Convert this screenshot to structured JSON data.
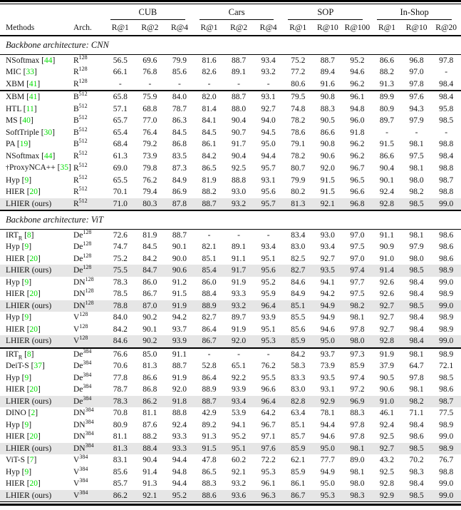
{
  "colors": {
    "citation_green": "#00df00",
    "highlight_row_gray": "#e6e6e6",
    "rule_black": "#000000"
  },
  "table": {
    "methods_header": "Methods",
    "arch_header": "Arch.",
    "col_groups": [
      {
        "label": "CUB",
        "cols": [
          "R@1",
          "R@2",
          "R@4"
        ]
      },
      {
        "label": "Cars",
        "cols": [
          "R@1",
          "R@2",
          "R@4"
        ]
      },
      {
        "label": "SOP",
        "cols": [
          "R@1",
          "R@10",
          "R@100"
        ]
      },
      {
        "label": "In-Shop",
        "cols": [
          "R@1",
          "R@10",
          "R@20"
        ]
      }
    ],
    "sections": [
      {
        "title": "Backbone architecture: CNN",
        "blocks": [
          {
            "rows": [
              {
                "method": "NSoftmax",
                "cite": "44",
                "arch": "R",
                "sup": "128",
                "vals": [
                  "56.5",
                  "69.6",
                  "79.9",
                  "81.6",
                  "88.7",
                  "93.4",
                  "75.2",
                  "88.7",
                  "95.2",
                  "86.6",
                  "96.8",
                  "97.8"
                ]
              },
              {
                "method": "MIC",
                "cite": "33",
                "arch": "R",
                "sup": "128",
                "vals": [
                  "66.1",
                  "76.8",
                  "85.6",
                  "82.6",
                  "89.1",
                  "93.2",
                  "77.2",
                  "89.4",
                  "94.6",
                  "88.2",
                  "97.0",
                  "-"
                ]
              },
              {
                "method": "XBM",
                "cite": "41",
                "arch": "R",
                "sup": "128",
                "vals": [
                  "-",
                  "-",
                  "-",
                  "-",
                  "-",
                  "-",
                  "80.6",
                  "91.6",
                  "96.2",
                  "91.3",
                  "97.8",
                  "98.4"
                ]
              }
            ]
          },
          {
            "rows": [
              {
                "method": "XBM",
                "cite": "41",
                "arch": "B",
                "sup": "512",
                "vals": [
                  "65.8",
                  "75.9",
                  "84.0",
                  "82.0",
                  "88.7",
                  "93.1",
                  "79.5",
                  "90.8",
                  "96.1",
                  "89.9",
                  "97.6",
                  "98.4"
                ]
              },
              {
                "method": "HTL",
                "cite": "11",
                "arch": "B",
                "sup": "512",
                "vals": [
                  "57.1",
                  "68.8",
                  "78.7",
                  "81.4",
                  "88.0",
                  "92.7",
                  "74.8",
                  "88.3",
                  "94.8",
                  "80.9",
                  "94.3",
                  "95.8"
                ]
              },
              {
                "method": "MS",
                "cite": "40",
                "arch": "B",
                "sup": "512",
                "vals": [
                  "65.7",
                  "77.0",
                  "86.3",
                  "84.1",
                  "90.4",
                  "94.0",
                  "78.2",
                  "90.5",
                  "96.0",
                  "89.7",
                  "97.9",
                  "98.5"
                ]
              },
              {
                "method": "SoftTriple",
                "cite": "30",
                "arch": "B",
                "sup": "512",
                "vals": [
                  "65.4",
                  "76.4",
                  "84.5",
                  "84.5",
                  "90.7",
                  "94.5",
                  "78.6",
                  "86.6",
                  "91.8",
                  "-",
                  "-",
                  "-"
                ]
              },
              {
                "method": "PA",
                "cite": "19",
                "arch": "B",
                "sup": "512",
                "vals": [
                  "68.4",
                  "79.2",
                  "86.8",
                  "86.1",
                  "91.7",
                  "95.0",
                  "79.1",
                  "90.8",
                  "96.2",
                  "91.5",
                  "98.1",
                  "98.8"
                ]
              },
              {
                "method": "NSoftmax",
                "cite": "44",
                "arch": "R",
                "sup": "512",
                "vals": [
                  "61.3",
                  "73.9",
                  "83.5",
                  "84.2",
                  "90.4",
                  "94.4",
                  "78.2",
                  "90.6",
                  "96.2",
                  "86.6",
                  "97.5",
                  "98.4"
                ]
              },
              {
                "method": "ProxyNCA++",
                "cite": "35",
                "dagger": true,
                "arch": "R",
                "sup": "512",
                "vals": [
                  "69.0",
                  "79.8",
                  "87.3",
                  "86.5",
                  "92.5",
                  "95.7",
                  "80.7",
                  "92.0",
                  "96.7",
                  "90.4",
                  "98.1",
                  "98.8"
                ]
              },
              {
                "method": "Hyp",
                "cite": "9",
                "arch": "R",
                "sup": "512",
                "vals": [
                  "65.5",
                  "76.2",
                  "84.9",
                  "81.9",
                  "88.8",
                  "93.1",
                  "79.9",
                  "91.5",
                  "96.5",
                  "90.1",
                  "98.0",
                  "98.7"
                ]
              },
              {
                "method": "HIER",
                "cite": "20",
                "arch": "R",
                "sup": "512",
                "vals": [
                  "70.1",
                  "79.4",
                  "86.9",
                  "88.2",
                  "93.0",
                  "95.6",
                  "80.2",
                  "91.5",
                  "96.6",
                  "92.4",
                  "98.2",
                  "98.8"
                ]
              },
              {
                "method": "LHIER (ours)",
                "ours": true,
                "arch": "R",
                "sup": "512",
                "vals": [
                  "71.0",
                  "80.3",
                  "87.8",
                  "88.7",
                  "93.2",
                  "95.7",
                  "81.3",
                  "92.1",
                  "96.8",
                  "92.8",
                  "98.5",
                  "99.0"
                ]
              }
            ]
          }
        ]
      },
      {
        "title": "Backbone architecture: ViT",
        "blocks": [
          {
            "rows": [
              {
                "method": "IRT",
                "subscript": "R",
                "cite": "8",
                "arch": "De",
                "sup": "128",
                "vals": [
                  "72.6",
                  "81.9",
                  "88.7",
                  "-",
                  "-",
                  "-",
                  "83.4",
                  "93.0",
                  "97.0",
                  "91.1",
                  "98.1",
                  "98.6"
                ]
              },
              {
                "method": "Hyp",
                "cite": "9",
                "arch": "De",
                "sup": "128",
                "vals": [
                  "74.7",
                  "84.5",
                  "90.1",
                  "82.1",
                  "89.1",
                  "93.4",
                  "83.0",
                  "93.4",
                  "97.5",
                  "90.9",
                  "97.9",
                  "98.6"
                ]
              },
              {
                "method": "HIER",
                "cite": "20",
                "arch": "De",
                "sup": "128",
                "vals": [
                  "75.2",
                  "84.2",
                  "90.0",
                  "85.1",
                  "91.1",
                  "95.1",
                  "82.5",
                  "92.7",
                  "97.0",
                  "91.0",
                  "98.0",
                  "98.6"
                ]
              },
              {
                "method": "LHIER (ours)",
                "ours": true,
                "arch": "De",
                "sup": "128",
                "vals": [
                  "75.5",
                  "84.7",
                  "90.6",
                  "85.4",
                  "91.7",
                  "95.6",
                  "82.7",
                  "93.5",
                  "97.4",
                  "91.4",
                  "98.5",
                  "98.9"
                ]
              },
              {
                "method": "Hyp",
                "cite": "9",
                "arch": "DN",
                "sup": "128",
                "vals": [
                  "78.3",
                  "86.0",
                  "91.2",
                  "86.0",
                  "91.9",
                  "95.2",
                  "84.6",
                  "94.1",
                  "97.7",
                  "92.6",
                  "98.4",
                  "99.0"
                ]
              },
              {
                "method": "HIER",
                "cite": "20",
                "arch": "DN",
                "sup": "128",
                "vals": [
                  "78.5",
                  "86.7",
                  "91.5",
                  "88.4",
                  "93.3",
                  "95.9",
                  "84.9",
                  "94.2",
                  "97.5",
                  "92.6",
                  "98.4",
                  "98.9"
                ]
              },
              {
                "method": "LHIER (ours)",
                "ours": true,
                "arch": "DN",
                "sup": "128",
                "vals": [
                  "78.8",
                  "87.0",
                  "91.9",
                  "88.9",
                  "93.2",
                  "96.4",
                  "85.1",
                  "94.9",
                  "98.2",
                  "92.7",
                  "98.5",
                  "99.0"
                ]
              },
              {
                "method": "Hyp",
                "cite": "9",
                "arch": "V",
                "sup": "128",
                "vals": [
                  "84.0",
                  "90.2",
                  "94.2",
                  "82.7",
                  "89.7",
                  "93.9",
                  "85.5",
                  "94.9",
                  "98.1",
                  "92.7",
                  "98.4",
                  "98.9"
                ]
              },
              {
                "method": "HIER",
                "cite": "20",
                "arch": "V",
                "sup": "128",
                "vals": [
                  "84.2",
                  "90.1",
                  "93.7",
                  "86.4",
                  "91.9",
                  "95.1",
                  "85.6",
                  "94.6",
                  "97.8",
                  "92.7",
                  "98.4",
                  "98.9"
                ]
              },
              {
                "method": "LHIER (ours)",
                "ours": true,
                "arch": "V",
                "sup": "128",
                "vals": [
                  "84.6",
                  "90.2",
                  "93.9",
                  "86.7",
                  "92.0",
                  "95.3",
                  "85.9",
                  "95.0",
                  "98.0",
                  "92.8",
                  "98.4",
                  "99.0"
                ]
              }
            ]
          },
          {
            "rows": [
              {
                "method": "IRT",
                "subscript": "R",
                "cite": "8",
                "arch": "De",
                "sup": "384",
                "vals": [
                  "76.6",
                  "85.0",
                  "91.1",
                  "-",
                  "-",
                  "-",
                  "84.2",
                  "93.7",
                  "97.3",
                  "91.9",
                  "98.1",
                  "98.9"
                ]
              },
              {
                "method": "DeiT-S",
                "cite": "37",
                "arch": "De",
                "sup": "384",
                "vals": [
                  "70.6",
                  "81.3",
                  "88.7",
                  "52.8",
                  "65.1",
                  "76.2",
                  "58.3",
                  "73.9",
                  "85.9",
                  "37.9",
                  "64.7",
                  "72.1"
                ]
              },
              {
                "method": "Hyp",
                "cite": "9",
                "arch": "De",
                "sup": "384",
                "vals": [
                  "77.8",
                  "86.6",
                  "91.9",
                  "86.4",
                  "92.2",
                  "95.5",
                  "83.3",
                  "93.5",
                  "97.4",
                  "90.5",
                  "97.8",
                  "98.5"
                ]
              },
              {
                "method": "HIER",
                "cite": "20",
                "arch": "De",
                "sup": "384",
                "vals": [
                  "78.7",
                  "86.8",
                  "92.0",
                  "88.9",
                  "93.9",
                  "96.6",
                  "83.0",
                  "93.1",
                  "97.2",
                  "90.6",
                  "98.1",
                  "98.6"
                ]
              },
              {
                "method": "LHIER (ours)",
                "ours": true,
                "arch": "De",
                "sup": "384",
                "vals": [
                  "78.3",
                  "86.2",
                  "91.8",
                  "88.7",
                  "93.4",
                  "96.4",
                  "82.8",
                  "92.9",
                  "96.9",
                  "91.0",
                  "98.2",
                  "98.7"
                ]
              },
              {
                "method": "DINO",
                "cite": "2",
                "arch": "DN",
                "sup": "384",
                "vals": [
                  "70.8",
                  "81.1",
                  "88.8",
                  "42.9",
                  "53.9",
                  "64.2",
                  "63.4",
                  "78.1",
                  "88.3",
                  "46.1",
                  "71.1",
                  "77.5"
                ]
              },
              {
                "method": "Hyp",
                "cite": "9",
                "arch": "DN",
                "sup": "384",
                "vals": [
                  "80.9",
                  "87.6",
                  "92.4",
                  "89.2",
                  "94.1",
                  "96.7",
                  "85.1",
                  "94.4",
                  "97.8",
                  "92.4",
                  "98.4",
                  "98.9"
                ]
              },
              {
                "method": "HIER",
                "cite": "20",
                "arch": "DN",
                "sup": "384",
                "vals": [
                  "81.1",
                  "88.2",
                  "93.3",
                  "91.3",
                  "95.2",
                  "97.1",
                  "85.7",
                  "94.6",
                  "97.8",
                  "92.5",
                  "98.6",
                  "99.0"
                ]
              },
              {
                "method": "LHIER (ours)",
                "ours": true,
                "arch": "DN",
                "sup": "384",
                "vals": [
                  "81.3",
                  "88.4",
                  "93.3",
                  "91.5",
                  "95.1",
                  "97.6",
                  "85.9",
                  "95.0",
                  "98.1",
                  "92.7",
                  "98.5",
                  "98.9"
                ]
              },
              {
                "method": "ViT-S",
                "cite": "7",
                "arch": "V",
                "sup": "384",
                "vals": [
                  "83.1",
                  "90.4",
                  "94.4",
                  "47.8",
                  "60.2",
                  "72.2",
                  "62.1",
                  "77.7",
                  "89.0",
                  "43.2",
                  "70.2",
                  "76.7"
                ]
              },
              {
                "method": "Hyp",
                "cite": "9",
                "arch": "V",
                "sup": "384",
                "vals": [
                  "85.6",
                  "91.4",
                  "94.8",
                  "86.5",
                  "92.1",
                  "95.3",
                  "85.9",
                  "94.9",
                  "98.1",
                  "92.5",
                  "98.3",
                  "98.8"
                ]
              },
              {
                "method": "HIER",
                "cite": "20",
                "arch": "V",
                "sup": "384",
                "vals": [
                  "85.7",
                  "91.3",
                  "94.4",
                  "88.3",
                  "93.2",
                  "96.1",
                  "86.1",
                  "95.0",
                  "98.0",
                  "92.8",
                  "98.4",
                  "99.0"
                ]
              },
              {
                "method": "LHIER (ours)",
                "ours": true,
                "arch": "V",
                "sup": "384",
                "vals": [
                  "86.2",
                  "92.1",
                  "95.2",
                  "88.6",
                  "93.6",
                  "96.3",
                  "86.7",
                  "95.3",
                  "98.3",
                  "92.9",
                  "98.5",
                  "99.0"
                ]
              }
            ]
          }
        ]
      }
    ]
  }
}
